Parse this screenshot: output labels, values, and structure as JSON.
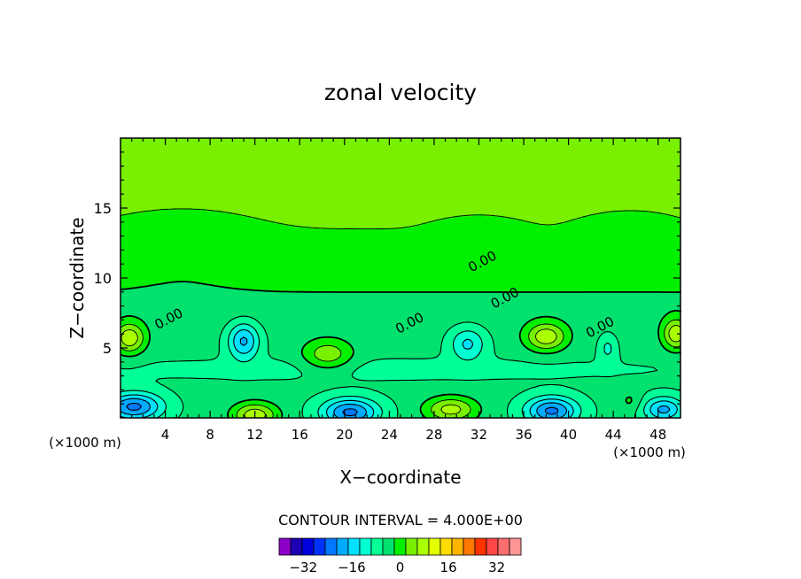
{
  "chart_data": {
    "type": "heatmap",
    "title": "zonal velocity",
    "xlabel": "X−coordinate",
    "ylabel": "Z−coordinate",
    "x_unit_left": "(×1000 m)",
    "x_unit_right": "(×1000 m)",
    "xlim": [
      0,
      50
    ],
    "ylim": [
      0,
      20
    ],
    "x_ticks": [
      "4",
      "8",
      "12",
      "16",
      "20",
      "24",
      "28",
      "32",
      "36",
      "40",
      "44",
      "48"
    ],
    "x_tick_values": [
      4,
      8,
      12,
      16,
      20,
      24,
      28,
      32,
      36,
      40,
      44,
      48
    ],
    "y_ticks": [
      "5",
      "10",
      "15"
    ],
    "y_tick_values": [
      5,
      10,
      15
    ],
    "contour_interval_text": "CONTOUR INTERVAL = 4.000E+00",
    "contour_interval": 4,
    "contour_labels": [
      {
        "text": "0.00",
        "x": 32.5,
        "y": 10.9
      },
      {
        "text": "0.00",
        "x": 34.5,
        "y": 8.3
      },
      {
        "text": "0.00",
        "x": 43.0,
        "y": 6.2
      },
      {
        "text": "0.00",
        "x": 26.0,
        "y": 6.5
      },
      {
        "text": "0.00",
        "x": 4.5,
        "y": 6.8
      }
    ],
    "colorbar": {
      "colors": [
        "#8b00c8",
        "#1e00b4",
        "#0000dc",
        "#0032ff",
        "#0078ff",
        "#00aaff",
        "#00e1ff",
        "#00ffd2",
        "#00ff96",
        "#00e16e",
        "#00f000",
        "#78f000",
        "#aaff00",
        "#e1ff00",
        "#ffdc00",
        "#ffb400",
        "#ff7800",
        "#ff3200",
        "#ff4646",
        "#ff6e6e",
        "#ff9696"
      ],
      "tick_labels": [
        "−32",
        "−16",
        "0",
        "16",
        "32"
      ],
      "tick_values": [
        -32,
        -16,
        0,
        16,
        32
      ],
      "range": [
        -40,
        40
      ]
    },
    "features": [
      {
        "x": 22,
        "y": 3.5,
        "value": -2,
        "sx": 30,
        "sy": 0.9
      },
      {
        "x": 11,
        "y": 5.5,
        "value": -14,
        "sx": 1.4,
        "sy": 1.3
      },
      {
        "x": 18.5,
        "y": 4.5,
        "value": 10,
        "sx": 2.2,
        "sy": 1.1
      },
      {
        "x": 31,
        "y": 5.3,
        "value": -10,
        "sx": 1.6,
        "sy": 1.2
      },
      {
        "x": 38,
        "y": 5.8,
        "value": 14,
        "sx": 1.8,
        "sy": 1.0
      },
      {
        "x": 43.5,
        "y": 5.0,
        "value": -6,
        "sx": 0.8,
        "sy": 1.0
      },
      {
        "x": 0.8,
        "y": 5.7,
        "value": 14,
        "sx": 1.4,
        "sy": 1.1
      },
      {
        "x": 49.6,
        "y": 6.0,
        "value": 14,
        "sx": 1.2,
        "sy": 1.1
      },
      {
        "x": 1.2,
        "y": 0.8,
        "value": -18,
        "sx": 2.5,
        "sy": 1.0
      },
      {
        "x": 12,
        "y": 0.2,
        "value": 14,
        "sx": 2.0,
        "sy": 0.9
      },
      {
        "x": 20.5,
        "y": 0.4,
        "value": -18,
        "sx": 2.5,
        "sy": 1.0
      },
      {
        "x": 29.5,
        "y": 0.6,
        "value": 13,
        "sx": 2.3,
        "sy": 0.9
      },
      {
        "x": 38.5,
        "y": 0.5,
        "value": -18,
        "sx": 2.3,
        "sy": 1.0
      },
      {
        "x": 48.5,
        "y": 0.6,
        "value": -14,
        "sx": 1.8,
        "sy": 0.9
      },
      {
        "x": 45.5,
        "y": 1.2,
        "value": 4,
        "sx": 1.0,
        "sy": 0.8
      },
      {
        "x": 5.5,
        "y": 11.8,
        "value": -2.3,
        "sx": 6.0,
        "sy": 2.2
      },
      {
        "x": 32,
        "y": 12.5,
        "value": -2.5,
        "sx": 3.5,
        "sy": 1.3
      },
      {
        "x": 45.5,
        "y": 12.6,
        "value": -2.5,
        "sx": 4.0,
        "sy": 1.5
      }
    ],
    "base_field": {
      "upper": 4.5,
      "lower": -3.2,
      "z_transition": 9.5,
      "width": 1.5
    }
  }
}
